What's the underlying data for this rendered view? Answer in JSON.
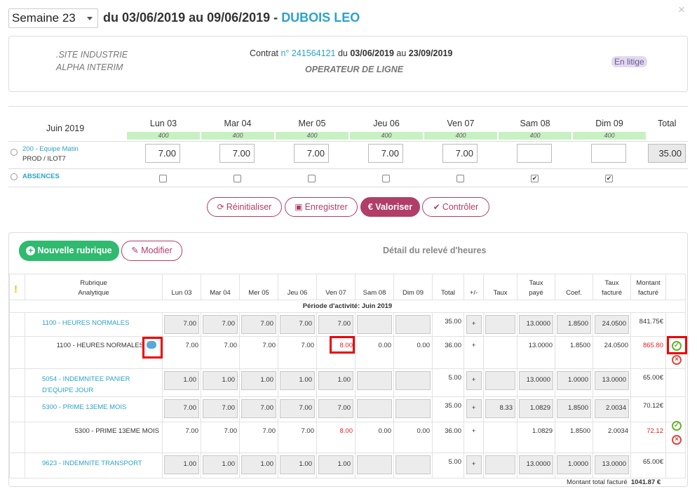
{
  "header": {
    "week": "Semaine 23",
    "period": "du 03/06/2019 au 09/06/2019 -",
    "name": "DUBOIS LEO",
    "close": "×"
  },
  "contract": {
    "site_line1": ".SITE INDUSTRIE",
    "site_line2": "ALPHA INTERIM",
    "label": "Contrat",
    "number": "n° 241564121",
    "from_label": "du",
    "from": "03/06/2019",
    "to_label": "au",
    "to": "23/09/2019",
    "job": "OPERATEUR DE LIGNE",
    "status": "En litige"
  },
  "planning": {
    "month": "Juin 2019",
    "days": [
      "Lun 03",
      "Mar 04",
      "Mer 05",
      "Jeu 06",
      "Ven 07",
      "Sam 08",
      "Dim 09"
    ],
    "codes": [
      "400",
      "400",
      "400",
      "400",
      "400",
      "400",
      "400"
    ],
    "total_label": "Total",
    "team": "200 - Equipe Matin",
    "team_sub": "PROD / ILOT7",
    "hours": [
      "7.00",
      "7.00",
      "7.00",
      "7.00",
      "7.00",
      "",
      ""
    ],
    "total": "35.00",
    "absences_label": "ABSENCES",
    "absences": [
      false,
      false,
      false,
      false,
      false,
      true,
      true
    ]
  },
  "actions": {
    "reset": "Réinitialiser",
    "save": "Enregistrer",
    "valorize": "€ Valoriser",
    "control": "Contrôler"
  },
  "detail": {
    "new": "Nouvelle rubrique",
    "modify": "Modifier",
    "title": "Détail du relevé d'heures",
    "head": {
      "warn": "!",
      "rubrique1": "Rubrique",
      "rubrique2": "Analytique",
      "days": [
        "Lun 03",
        "Mar 04",
        "Mer 05",
        "Jeu 06",
        "Ven 07",
        "Sam 08",
        "Dim 09"
      ],
      "total": "Total",
      "pm": "+/-",
      "taux": "Taux",
      "taux_paye1": "Taux",
      "taux_paye2": "payé",
      "coef": "Coef.",
      "taux_fact1": "Taux",
      "taux_fact2": "facturé",
      "montant1": "Montant",
      "montant2": "facturé"
    },
    "periode": "Période d'activité: Juin 2019",
    "rows": [
      {
        "label": "1100 - HEURES NORMALES",
        "days": [
          "7.00",
          "7.00",
          "7.00",
          "7.00",
          "7.00",
          "",
          ""
        ],
        "total": "35.00",
        "pm": "+",
        "taux": "",
        "taux_paye": "13.0000",
        "coef": "1.8500",
        "taux_fact": "24.0500",
        "montant": "841.75€"
      },
      {
        "label": "1100 - HEURES NORMALES",
        "days": [
          "7.00",
          "7.00",
          "7.00",
          "7.00",
          "8.00",
          "0.00",
          "0.00"
        ],
        "total": "36.00",
        "pm": "+",
        "taux": "",
        "taux_paye": "13.0000",
        "coef": "1.8500",
        "taux_fact": "24.0500",
        "montant": "865.80"
      },
      {
        "label": "5054 - INDEMNITEE PANIER D'EQUIPE JOUR",
        "days": [
          "1.00",
          "1.00",
          "1.00",
          "1.00",
          "1.00",
          "",
          ""
        ],
        "total": "5.00",
        "pm": "+",
        "taux": "",
        "taux_paye": "13.0000",
        "coef": "1.0000",
        "taux_fact": "13.0000",
        "montant": "65.00€"
      },
      {
        "label": "5300 - PRIME 13EME MOIS",
        "days": [
          "7.00",
          "7.00",
          "7.00",
          "7.00",
          "7.00",
          "",
          ""
        ],
        "total": "35.00",
        "pm": "+",
        "taux": "8.33",
        "taux_paye": "1.0829",
        "coef": "1.8500",
        "taux_fact": "2.0034",
        "montant": "70.12€"
      },
      {
        "label": "5300 - PRIME 13EME MOIS",
        "days": [
          "7.00",
          "7.00",
          "7.00",
          "7.00",
          "8.00",
          "0.00",
          "0.00"
        ],
        "total": "36.00",
        "pm": "+",
        "taux": "",
        "taux_paye": "1.0829",
        "coef": "1.8500",
        "taux_fact": "2.0034",
        "montant": "72.12"
      },
      {
        "label": "9623 - INDEMNITE TRANSPORT",
        "days": [
          "1.00",
          "1.00",
          "1.00",
          "1.00",
          "1.00",
          "",
          ""
        ],
        "total": "5.00",
        "pm": "+",
        "taux": "",
        "taux_paye": "13.0000",
        "coef": "1.0000",
        "taux_fact": "13.0000",
        "montant": "65.00€"
      }
    ],
    "total_label": "Montant total facturé",
    "total_value": "1041.87 €"
  }
}
